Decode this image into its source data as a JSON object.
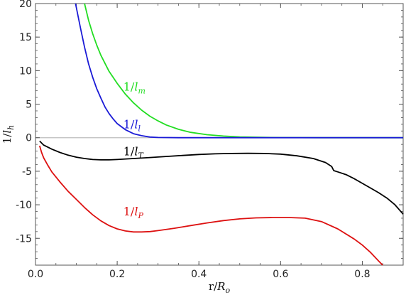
{
  "chart_data": {
    "type": "line",
    "title": "",
    "xlabel": {
      "main": "r/",
      "var": "R",
      "sub": "o"
    },
    "ylabel": {
      "main": "1/",
      "var": "l",
      "sub": "h"
    },
    "xlim": [
      0.0,
      0.9
    ],
    "ylim": [
      -19,
      20
    ],
    "x_ticks": [
      0.0,
      0.2,
      0.4,
      0.6,
      0.8
    ],
    "x_tick_labels": [
      "0.0",
      "0.2",
      "0.4",
      "0.6",
      "0.8"
    ],
    "x_minor_step": 0.05,
    "y_ticks": [
      20,
      15,
      10,
      5,
      0,
      -5,
      -10,
      -15
    ],
    "y_tick_labels": [
      "20",
      "15",
      "10",
      "5",
      "0",
      "-5",
      "-10",
      "-15"
    ],
    "y_minor_step": 1,
    "zero_line": true,
    "grid": false,
    "legend": "inline-labels",
    "series": [
      {
        "id": "m",
        "label_main": "1/",
        "label_var": "l",
        "label_sub": "m",
        "color": "#22dd22",
        "label_at": [
          0.215,
          7.0
        ],
        "points": [
          [
            0.12,
            20
          ],
          [
            0.13,
            17.5
          ],
          [
            0.14,
            15.5
          ],
          [
            0.15,
            13.8
          ],
          [
            0.16,
            12.3
          ],
          [
            0.18,
            9.9
          ],
          [
            0.2,
            8.1
          ],
          [
            0.22,
            6.5
          ],
          [
            0.24,
            5.2
          ],
          [
            0.26,
            4.1
          ],
          [
            0.28,
            3.2
          ],
          [
            0.3,
            2.5
          ],
          [
            0.32,
            1.9
          ],
          [
            0.35,
            1.25
          ],
          [
            0.38,
            0.8
          ],
          [
            0.42,
            0.45
          ],
          [
            0.46,
            0.25
          ],
          [
            0.5,
            0.12
          ],
          [
            0.55,
            0.05
          ],
          [
            0.6,
            0.02
          ],
          [
            0.7,
            0.0
          ],
          [
            0.9,
            0.0
          ]
        ]
      },
      {
        "id": "l",
        "label_main": "1/",
        "label_var": "l",
        "label_sub": "l",
        "color": "#1a1ad6",
        "label_at": [
          0.215,
          1.4
        ],
        "points": [
          [
            0.098,
            20
          ],
          [
            0.11,
            16.4
          ],
          [
            0.12,
            13.5
          ],
          [
            0.13,
            11.0
          ],
          [
            0.14,
            9.0
          ],
          [
            0.15,
            7.3
          ],
          [
            0.16,
            5.9
          ],
          [
            0.17,
            4.6
          ],
          [
            0.18,
            3.6
          ],
          [
            0.19,
            2.8
          ],
          [
            0.2,
            2.1
          ],
          [
            0.22,
            1.2
          ],
          [
            0.24,
            0.6
          ],
          [
            0.26,
            0.3
          ],
          [
            0.28,
            0.1
          ],
          [
            0.3,
            0.03
          ],
          [
            0.35,
            0.0
          ],
          [
            0.9,
            0.0
          ]
        ]
      },
      {
        "id": "T",
        "label_main": "1/",
        "label_var": "l",
        "label_sub": "T",
        "color": "#000000",
        "label_at": [
          0.215,
          -2.6
        ],
        "points": [
          [
            0.01,
            -0.5
          ],
          [
            0.02,
            -1.1
          ],
          [
            0.04,
            -1.7
          ],
          [
            0.06,
            -2.2
          ],
          [
            0.08,
            -2.6
          ],
          [
            0.1,
            -2.9
          ],
          [
            0.12,
            -3.1
          ],
          [
            0.14,
            -3.25
          ],
          [
            0.16,
            -3.3
          ],
          [
            0.18,
            -3.3
          ],
          [
            0.2,
            -3.25
          ],
          [
            0.24,
            -3.1
          ],
          [
            0.28,
            -2.95
          ],
          [
            0.32,
            -2.8
          ],
          [
            0.36,
            -2.65
          ],
          [
            0.4,
            -2.5
          ],
          [
            0.44,
            -2.4
          ],
          [
            0.48,
            -2.35
          ],
          [
            0.52,
            -2.33
          ],
          [
            0.56,
            -2.35
          ],
          [
            0.6,
            -2.45
          ],
          [
            0.64,
            -2.7
          ],
          [
            0.68,
            -3.1
          ],
          [
            0.71,
            -3.7
          ],
          [
            0.725,
            -4.3
          ],
          [
            0.73,
            -4.9
          ],
          [
            0.74,
            -5.1
          ],
          [
            0.76,
            -5.5
          ],
          [
            0.78,
            -6.1
          ],
          [
            0.8,
            -6.8
          ],
          [
            0.82,
            -7.5
          ],
          [
            0.84,
            -8.2
          ],
          [
            0.86,
            -9.0
          ],
          [
            0.88,
            -10.0
          ],
          [
            0.9,
            -11.4
          ]
        ]
      },
      {
        "id": "P",
        "label_main": "1/",
        "label_var": "l",
        "label_sub": "P",
        "color": "#dd1111",
        "label_at": [
          0.215,
          -11.6
        ],
        "points": [
          [
            0.01,
            -1.2
          ],
          [
            0.015,
            -2.2
          ],
          [
            0.02,
            -3.0
          ],
          [
            0.03,
            -4.1
          ],
          [
            0.04,
            -5.1
          ],
          [
            0.06,
            -6.6
          ],
          [
            0.08,
            -8.0
          ],
          [
            0.1,
            -9.2
          ],
          [
            0.12,
            -10.4
          ],
          [
            0.14,
            -11.5
          ],
          [
            0.16,
            -12.4
          ],
          [
            0.18,
            -13.1
          ],
          [
            0.2,
            -13.6
          ],
          [
            0.22,
            -13.9
          ],
          [
            0.24,
            -14.05
          ],
          [
            0.26,
            -14.05
          ],
          [
            0.28,
            -14.0
          ],
          [
            0.3,
            -13.85
          ],
          [
            0.34,
            -13.5
          ],
          [
            0.38,
            -13.1
          ],
          [
            0.42,
            -12.7
          ],
          [
            0.46,
            -12.35
          ],
          [
            0.5,
            -12.1
          ],
          [
            0.54,
            -11.95
          ],
          [
            0.58,
            -11.9
          ],
          [
            0.62,
            -11.9
          ],
          [
            0.66,
            -12.0
          ],
          [
            0.7,
            -12.5
          ],
          [
            0.74,
            -13.6
          ],
          [
            0.78,
            -15.1
          ],
          [
            0.8,
            -16.0
          ],
          [
            0.82,
            -17.1
          ],
          [
            0.84,
            -18.4
          ],
          [
            0.85,
            -19.0
          ]
        ]
      }
    ]
  }
}
